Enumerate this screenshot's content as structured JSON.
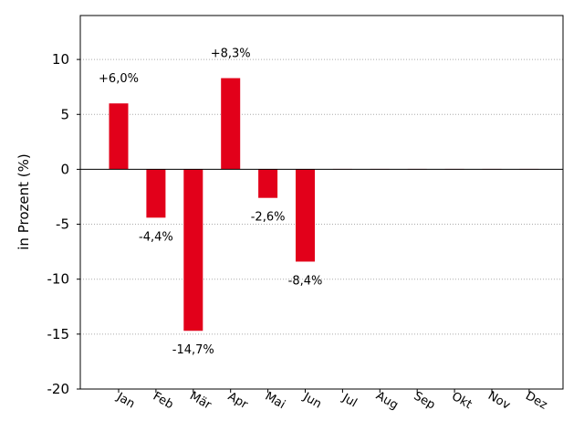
{
  "chart_data": {
    "type": "bar",
    "title": "",
    "xlabel": "",
    "ylabel": "in Prozent (%)",
    "ylim": [
      -20,
      14
    ],
    "yticks": [
      10,
      5,
      0,
      -5,
      -10,
      -15,
      -20
    ],
    "ytick_labels": [
      "10",
      "5",
      "0",
      "-5",
      "-10",
      "-15",
      "-20"
    ],
    "grid": "horizontal dotted",
    "bar_color": "#e2001a",
    "categories": [
      "Jan",
      "Feb",
      "Mär",
      "Apr",
      "Mai",
      "Jun",
      "Jul",
      "Aug",
      "Sep",
      "Okt",
      "Nov",
      "Dez"
    ],
    "values": [
      6.0,
      -4.4,
      -14.7,
      8.3,
      -2.6,
      -8.4,
      null,
      null,
      null,
      null,
      null,
      null
    ],
    "data_labels": [
      "+6,0%",
      "-4,4%",
      "-14,7%",
      "+8,3%",
      "-2,6%",
      "-8,4%",
      "",
      "",
      "",
      "",
      "",
      ""
    ]
  }
}
